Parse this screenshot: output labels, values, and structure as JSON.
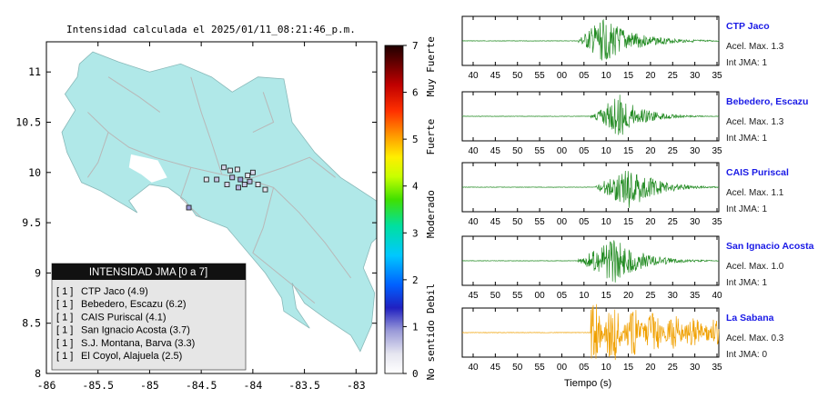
{
  "map": {
    "title": "Intensidad calculada el 2025/01/11_08:21:46_p.m.",
    "x_ticks": [
      "-86",
      "-85.5",
      "-85",
      "-84.5",
      "-84",
      "-83.5",
      "-83"
    ],
    "y_ticks": [
      "11",
      "10.5",
      "10",
      "9.5",
      "9",
      "8.5",
      "8"
    ],
    "xlim": [
      -86,
      -82.8
    ],
    "ylim": [
      8,
      11.3
    ],
    "land_color": "#b0e8e8",
    "legend": {
      "title": "INTENSIDAD JMA [0 a 7]",
      "items": [
        {
          "int": "[ 1 ]",
          "label": "CTP Jaco (4.9)"
        },
        {
          "int": "[ 1 ]",
          "label": "Bebedero, Escazu (6.2)"
        },
        {
          "int": "[ 1 ]",
          "label": "CAIS Puriscal (4.1)"
        },
        {
          "int": "[ 1 ]",
          "label": "San Ignacio Acosta (3.7)"
        },
        {
          "int": "[ 1 ]",
          "label": "S.J. Montana, Barva (3.3)"
        },
        {
          "int": "[ 1 ]",
          "label": "El Coyol, Alajuela (2.5)"
        }
      ]
    },
    "stations": [
      {
        "lon": -84.62,
        "lat": 9.65,
        "color": "#9a9ad8"
      },
      {
        "lon": -84.45,
        "lat": 9.93,
        "color": "#e6e6f0"
      },
      {
        "lon": -84.35,
        "lat": 9.93,
        "color": "#c8c8e6"
      },
      {
        "lon": -84.28,
        "lat": 10.05,
        "color": "#d8d8ec"
      },
      {
        "lon": -84.22,
        "lat": 10.02,
        "color": "#e6e6f0"
      },
      {
        "lon": -84.2,
        "lat": 9.95,
        "color": "#b8b8e0"
      },
      {
        "lon": -84.15,
        "lat": 10.03,
        "color": "#e6e6f0"
      },
      {
        "lon": -84.12,
        "lat": 9.93,
        "color": "#9a9ad8"
      },
      {
        "lon": -84.08,
        "lat": 9.88,
        "color": "#c8c8e6"
      },
      {
        "lon": -84.05,
        "lat": 9.97,
        "color": "#e6e6f0"
      },
      {
        "lon": -84.03,
        "lat": 9.91,
        "color": "#b8b8e0"
      },
      {
        "lon": -84.0,
        "lat": 10.0,
        "color": "#d8d8ec"
      },
      {
        "lon": -83.95,
        "lat": 9.88,
        "color": "#e6e6f0"
      },
      {
        "lon": -84.25,
        "lat": 9.88,
        "color": "#d8d8ec"
      },
      {
        "lon": -84.14,
        "lat": 9.85,
        "color": "#b8b8e0"
      },
      {
        "lon": -83.88,
        "lat": 9.83,
        "color": "#e6e6f0"
      }
    ]
  },
  "colorbar": {
    "ticks": [
      "0",
      "1",
      "2",
      "3",
      "4",
      "5",
      "6",
      "7"
    ],
    "categories": [
      "No sentido",
      "Debil",
      "Moderado",
      "Fuerte",
      "Muy Fuerte"
    ],
    "range": [
      0,
      7
    ]
  },
  "chart_data": {
    "type": "line",
    "xlabel": "Tiempo (s)",
    "series": [
      {
        "name": "CTP Jaco",
        "acel_max": "Acel. Max. 1.3",
        "int_jma": "Int JMA: 1",
        "color": "#228b22",
        "ticks": [
          "40",
          "45",
          "50",
          "55",
          "00",
          "05",
          "10",
          "15",
          "20",
          "25",
          "30",
          "35"
        ],
        "onset": 0.45,
        "peak": 0.55,
        "env_amp": 1.0,
        "env_decay": 0.12
      },
      {
        "name": "Bebedero, Escazu",
        "acel_max": "Acel. Max. 1.3",
        "int_jma": "Int JMA: 1",
        "color": "#228b22",
        "ticks": [
          "40",
          "45",
          "50",
          "55",
          "00",
          "05",
          "10",
          "15",
          "20",
          "25",
          "30",
          "35"
        ],
        "onset": 0.5,
        "peak": 0.62,
        "env_amp": 1.0,
        "env_decay": 0.08
      },
      {
        "name": "CAIS Puriscal",
        "acel_max": "Acel. Max. 1.1",
        "int_jma": "Int JMA: 1",
        "color": "#228b22",
        "ticks": [
          "40",
          "45",
          "50",
          "55",
          "00",
          "05",
          "10",
          "15",
          "20",
          "25",
          "30",
          "35"
        ],
        "onset": 0.52,
        "peak": 0.66,
        "env_amp": 1.0,
        "env_decay": 0.09
      },
      {
        "name": "San Ignacio Acosta",
        "acel_max": "Acel. Max. 1.0",
        "int_jma": "Int JMA: 1",
        "color": "#228b22",
        "ticks": [
          "45",
          "50",
          "55",
          "00",
          "05",
          "10",
          "15",
          "20",
          "25",
          "30",
          "35",
          "40"
        ],
        "onset": 0.45,
        "peak": 0.6,
        "env_amp": 1.0,
        "env_decay": 0.1
      },
      {
        "name": "La Sabana",
        "acel_max": "Acel. Max. 0.3",
        "int_jma": "Int JMA: 0",
        "color": "#f0a000",
        "ticks": [
          "40",
          "45",
          "50",
          "55",
          "00",
          "05",
          "10",
          "15",
          "20",
          "25",
          "30",
          "35"
        ],
        "onset": 0.5,
        "peak": 0.7,
        "env_amp": 1.0,
        "env_decay": 0.35
      }
    ]
  }
}
